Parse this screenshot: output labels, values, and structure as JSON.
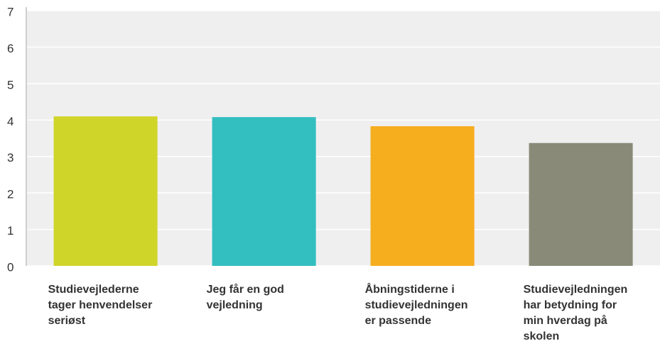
{
  "chart_data": {
    "type": "bar",
    "categories": [
      "Studievejlederne tager henvendelser seriøst",
      "Jeg får en god vejledning",
      "Åbningstiderne i studievejledningen er passende",
      "Studievejledningen har betydning for min hverdag på skolen"
    ],
    "values": [
      4.1,
      4.08,
      3.83,
      3.37
    ],
    "colors": [
      "#d0d52a",
      "#33bec0",
      "#f6ae1f",
      "#8a8a78"
    ],
    "ylim": [
      0,
      7
    ],
    "yticks": [
      0,
      1,
      2,
      3,
      4,
      5,
      6,
      7
    ],
    "grid": true
  }
}
